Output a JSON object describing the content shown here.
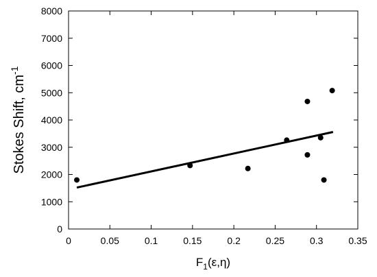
{
  "chart_data": {
    "type": "scatter",
    "title": "",
    "xlabel": {
      "main": "F",
      "subscript": "1",
      "rest": "(ε,η)"
    },
    "ylabel": {
      "main": "Stokes Shift, cm",
      "superscript": "-1"
    },
    "xlim": [
      0,
      0.35
    ],
    "ylim": [
      0,
      8000
    ],
    "x_ticks": [
      0,
      0.05,
      0.1,
      0.15,
      0.2,
      0.25,
      0.3,
      0.35
    ],
    "x_tick_labels": [
      "0",
      "0.05",
      "0.1",
      "0.15",
      "0.2",
      "0.25",
      "0.3",
      "0.35"
    ],
    "y_ticks": [
      0,
      1000,
      2000,
      3000,
      4000,
      5000,
      6000,
      7000,
      8000
    ],
    "y_tick_labels": [
      "0",
      "1000",
      "2000",
      "3000",
      "4000",
      "5000",
      "6000",
      "7000",
      "8000"
    ],
    "grid": false,
    "legend": "none",
    "series": [
      {
        "type": "scatter",
        "points": [
          {
            "x": 0.01,
            "y": 1800
          },
          {
            "x": 0.147,
            "y": 2330
          },
          {
            "x": 0.217,
            "y": 2220
          },
          {
            "x": 0.264,
            "y": 3260
          },
          {
            "x": 0.289,
            "y": 4680
          },
          {
            "x": 0.289,
            "y": 2720
          },
          {
            "x": 0.305,
            "y": 3350
          },
          {
            "x": 0.309,
            "y": 1800
          },
          {
            "x": 0.319,
            "y": 5080
          }
        ]
      },
      {
        "type": "line",
        "points": [
          {
            "x": 0.01,
            "y": 1520
          },
          {
            "x": 0.32,
            "y": 3560
          }
        ]
      }
    ]
  },
  "colors": {
    "marker": "#000000",
    "line": "#000000",
    "axis": "#000000"
  }
}
